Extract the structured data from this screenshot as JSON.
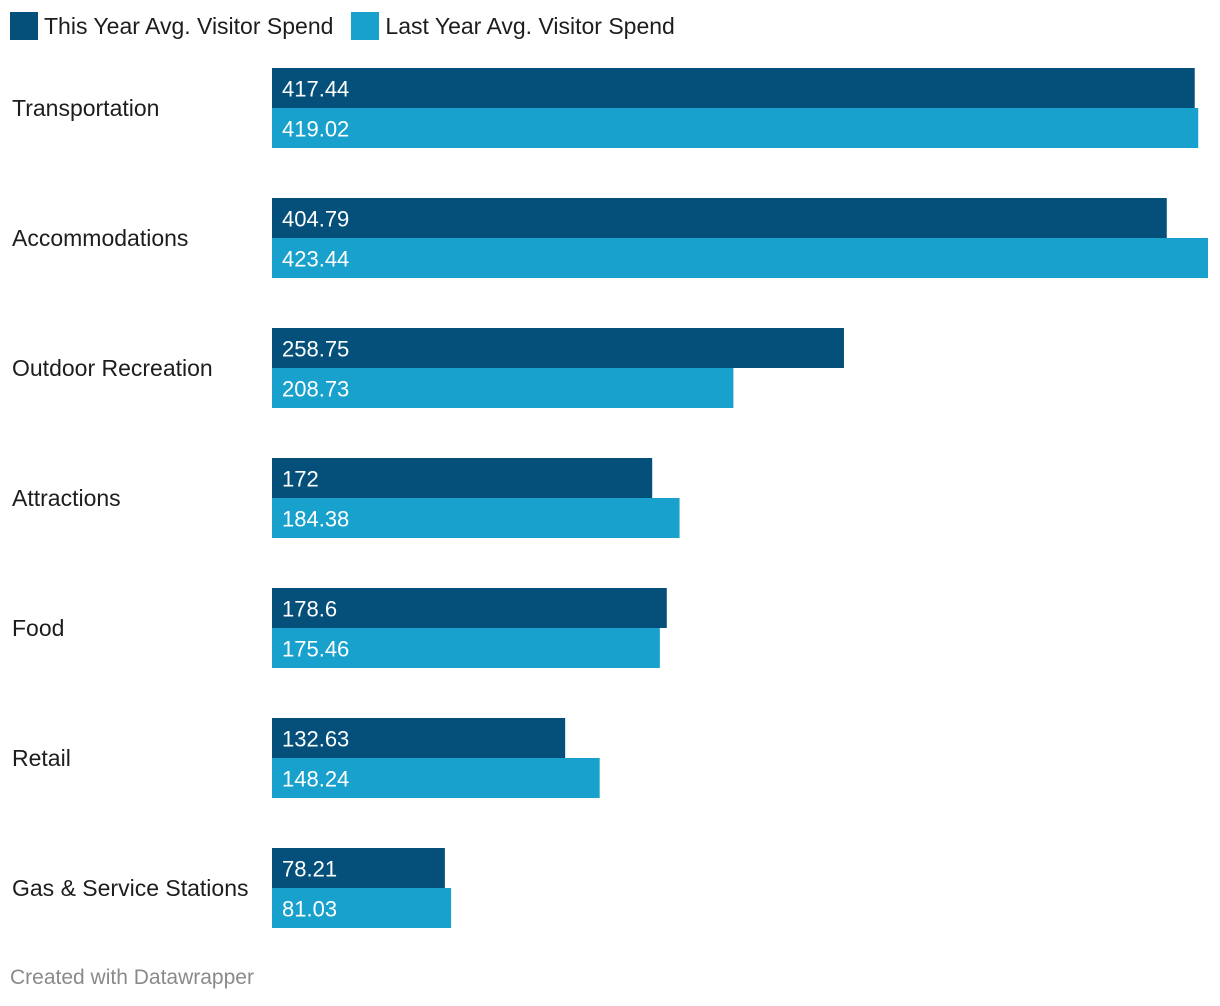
{
  "chart_data": {
    "type": "bar",
    "orientation": "horizontal",
    "title": "",
    "xlabel": "",
    "ylabel": "",
    "xlim": [
      0,
      423.44
    ],
    "grid": false,
    "legend_position": "top-left",
    "categories": [
      "Transportation",
      "Accommodations",
      "Outdoor Recreation",
      "Attractions",
      "Food",
      "Retail",
      "Gas & Service Stations"
    ],
    "series": [
      {
        "name": "This Year Avg. Visitor Spend",
        "color": "#04507b",
        "values": [
          417.44,
          404.79,
          258.75,
          172,
          178.6,
          132.63,
          78.21
        ],
        "labels": [
          "417.44",
          "404.79",
          "258.75",
          "172",
          "178.6",
          "132.63",
          "78.21"
        ]
      },
      {
        "name": "Last Year Avg. Visitor Spend",
        "color": "#18a1cd",
        "values": [
          419.02,
          423.44,
          208.73,
          184.38,
          175.46,
          148.24,
          81.03
        ],
        "labels": [
          "419.02",
          "423.44",
          "208.73",
          "184.38",
          "175.46",
          "148.24",
          "81.03"
        ]
      }
    ]
  },
  "footer": {
    "credit": "Created with Datawrapper"
  }
}
